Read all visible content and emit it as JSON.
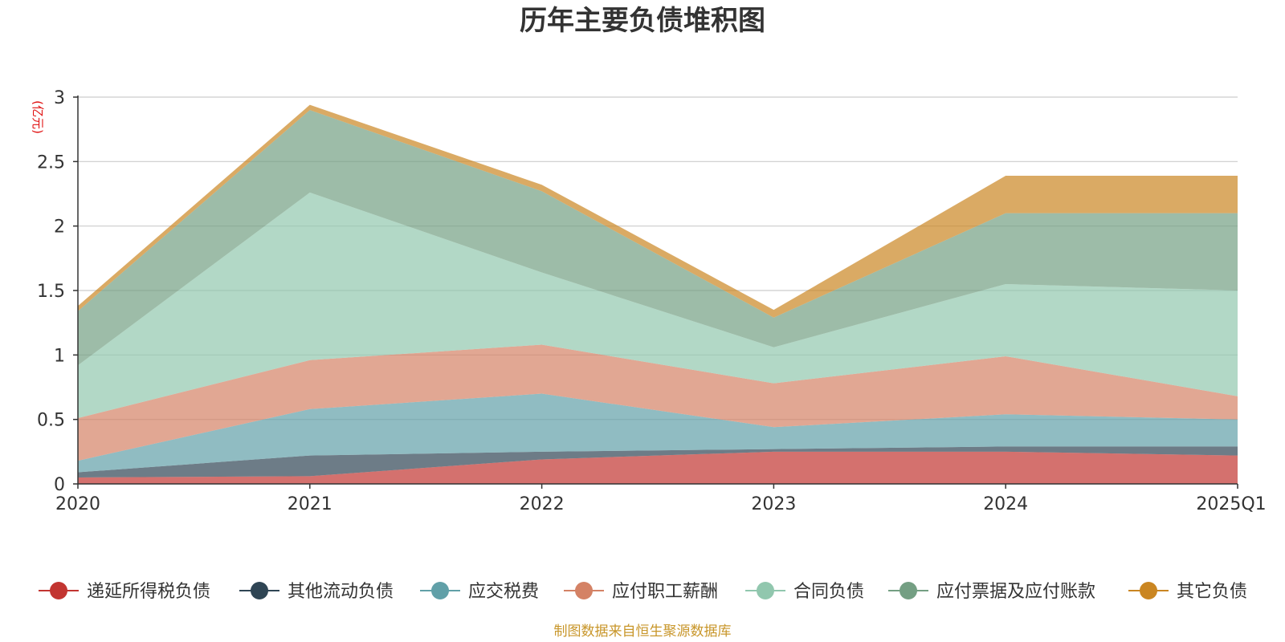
{
  "chart_data": {
    "type": "area",
    "stacked": true,
    "title": "历年主要负债堆积图",
    "unit": "(亿元)",
    "categories": [
      "2020",
      "2021",
      "2022",
      "2023",
      "2024",
      "2025Q1"
    ],
    "ylim": [
      0,
      3
    ],
    "yticks": [
      "0",
      "0.5",
      "1",
      "1.5",
      "2",
      "2.5",
      "3"
    ],
    "grid": true,
    "legend_position": "bottom",
    "series": [
      {
        "name": "递延所得税负债",
        "color": "#c23531",
        "values": [
          0.05,
          0.06,
          0.19,
          0.25,
          0.25,
          0.22
        ]
      },
      {
        "name": "其他流动负债",
        "color": "#2f4554",
        "values": [
          0.04,
          0.16,
          0.06,
          0.02,
          0.04,
          0.07
        ]
      },
      {
        "name": "应交税费",
        "color": "#61a0a8",
        "values": [
          0.09,
          0.36,
          0.45,
          0.17,
          0.25,
          0.21
        ]
      },
      {
        "name": "应付职工薪酬",
        "color": "#d48265",
        "values": [
          0.33,
          0.38,
          0.38,
          0.34,
          0.45,
          0.18
        ]
      },
      {
        "name": "合同负债",
        "color": "#91c7ae",
        "values": [
          0.41,
          1.3,
          0.56,
          0.28,
          0.56,
          0.82
        ]
      },
      {
        "name": "应付票据及应付账款",
        "color": "#749f83",
        "values": [
          0.42,
          0.64,
          0.63,
          0.23,
          0.55,
          0.6
        ]
      },
      {
        "name": "其它负债",
        "color": "#ca8622",
        "values": [
          0.04,
          0.04,
          0.05,
          0.06,
          0.29,
          0.29
        ]
      }
    ],
    "source_note": "制图数据来自恒生聚源数据库"
  }
}
